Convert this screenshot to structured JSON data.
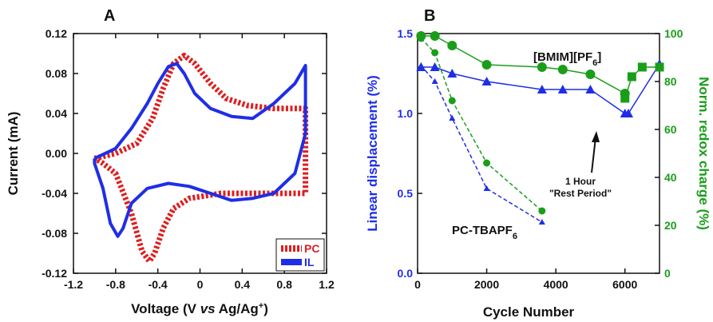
{
  "chart_data": [
    {
      "panel_label": "A",
      "type": "line",
      "xlabel": "Voltage (V vs Ag/Ag+)",
      "xlabel_parts": {
        "a": "Voltage (V ",
        "vs": "vs",
        "b": " Ag/Ag",
        "sup": "+",
        "c": ")"
      },
      "ylabel": "Current (mA)",
      "xlim": [
        -1.2,
        1.2
      ],
      "ylim": [
        -0.12,
        0.12
      ],
      "xticks": [
        "-1.2",
        "-0.8",
        "-0.4",
        "0",
        "0.4",
        "0.8",
        "1.2"
      ],
      "yticks": [
        "0.12",
        "0.08",
        "0.04",
        "0.00",
        "-0.04",
        "-0.08",
        "-0.12"
      ],
      "legend": {
        "placement": "bottom-right",
        "entries": [
          "PC",
          "IL"
        ]
      },
      "series": [
        {
          "name": "PC",
          "color": "#dd1f1f",
          "style": "thick-dashed",
          "points": [
            [
              -1.0,
              -0.005
            ],
            [
              -0.8,
              0.0
            ],
            [
              -0.6,
              0.01
            ],
            [
              -0.45,
              0.035
            ],
            [
              -0.35,
              0.065
            ],
            [
              -0.25,
              0.09
            ],
            [
              -0.15,
              0.098
            ],
            [
              -0.05,
              0.09
            ],
            [
              0.1,
              0.07
            ],
            [
              0.25,
              0.055
            ],
            [
              0.45,
              0.048
            ],
            [
              0.7,
              0.045
            ],
            [
              1.0,
              0.045
            ],
            [
              1.0,
              -0.04
            ],
            [
              0.8,
              -0.04
            ],
            [
              0.5,
              -0.04
            ],
            [
              0.2,
              -0.04
            ],
            [
              -0.1,
              -0.045
            ],
            [
              -0.25,
              -0.055
            ],
            [
              -0.35,
              -0.075
            ],
            [
              -0.43,
              -0.1
            ],
            [
              -0.48,
              -0.108
            ],
            [
              -0.55,
              -0.098
            ],
            [
              -0.65,
              -0.06
            ],
            [
              -0.8,
              -0.02
            ],
            [
              -0.92,
              -0.01
            ],
            [
              -1.0,
              -0.005
            ]
          ]
        },
        {
          "name": "IL",
          "color": "#1f2ee6",
          "style": "thick-solid",
          "points": [
            [
              -1.0,
              -0.005
            ],
            [
              -0.8,
              0.005
            ],
            [
              -0.65,
              0.025
            ],
            [
              -0.5,
              0.05
            ],
            [
              -0.4,
              0.07
            ],
            [
              -0.3,
              0.087
            ],
            [
              -0.22,
              0.09
            ],
            [
              -0.15,
              0.08
            ],
            [
              -0.05,
              0.06
            ],
            [
              0.1,
              0.045
            ],
            [
              0.3,
              0.037
            ],
            [
              0.5,
              0.035
            ],
            [
              0.7,
              0.05
            ],
            [
              0.9,
              0.07
            ],
            [
              1.0,
              0.088
            ],
            [
              1.0,
              0.02
            ],
            [
              0.9,
              -0.02
            ],
            [
              0.7,
              -0.04
            ],
            [
              0.5,
              -0.045
            ],
            [
              0.3,
              -0.047
            ],
            [
              0.1,
              -0.04
            ],
            [
              -0.1,
              -0.033
            ],
            [
              -0.3,
              -0.03
            ],
            [
              -0.5,
              -0.035
            ],
            [
              -0.65,
              -0.05
            ],
            [
              -0.73,
              -0.075
            ],
            [
              -0.78,
              -0.083
            ],
            [
              -0.85,
              -0.07
            ],
            [
              -0.92,
              -0.035
            ],
            [
              -1.0,
              -0.01
            ],
            [
              -1.0,
              -0.005
            ]
          ]
        }
      ]
    },
    {
      "panel_label": "B",
      "type": "line",
      "xlabel": "Cycle Number",
      "ylabel_left": "Linear displacement (%)",
      "ylabel_right": "Norm. redox charge (%)",
      "left_color": "#1f2ee6",
      "right_color": "#1a9e1a",
      "xlim": [
        0,
        7000
      ],
      "ylim_left": [
        0.0,
        1.5
      ],
      "ylim_right": [
        0,
        100
      ],
      "xticks": [
        "0",
        "2000",
        "4000",
        "6000"
      ],
      "yticks_left": [
        "0.0",
        "0.5",
        "1.0",
        "1.5"
      ],
      "yticks_right": [
        "0",
        "20",
        "40",
        "60",
        "80",
        "100"
      ],
      "annotations": {
        "bmim_main": "[BMIM][PF",
        "bmim_sub": "6",
        "bmim_end": "]",
        "pc_main": "PC-TBAPF",
        "pc_sub": "6",
        "rest_line1": "1 Hour",
        "rest_line2": "\"Rest Period\""
      },
      "series": [
        {
          "name": "[BMIM][PF6] displacement",
          "axis": "left",
          "color": "#1f2ee6",
          "style": "solid",
          "marker": "triangle",
          "x": [
            100,
            500,
            1000,
            2000,
            3600,
            4200,
            5000,
            6000,
            6100,
            7000
          ],
          "y": [
            1.29,
            1.29,
            1.25,
            1.2,
            1.15,
            1.15,
            1.15,
            1.0,
            1.0,
            1.31
          ]
        },
        {
          "name": "[BMIM][PF6] redox charge",
          "axis": "right",
          "color": "#1a9e1a",
          "style": "solid",
          "marker": "circle",
          "x": [
            100,
            500,
            1000,
            2000,
            3600,
            4200,
            5000,
            6000
          ],
          "y": [
            99,
            99,
            95,
            87,
            86,
            85,
            83,
            75
          ]
        },
        {
          "name": "[BMIM][PF6] redox charge after rest",
          "axis": "right",
          "color": "#1a9e1a",
          "style": "solid",
          "marker": "square",
          "x": [
            6000,
            6200,
            6500,
            7000
          ],
          "y": [
            73,
            82,
            86,
            86
          ]
        },
        {
          "name": "PC-TBAPF6 displacement",
          "axis": "left",
          "color": "#1f2ee6",
          "style": "dashed",
          "marker": "small-triangle",
          "x": [
            100,
            500,
            1000,
            2000,
            3600
          ],
          "y": [
            1.3,
            1.2,
            0.97,
            0.53,
            0.32
          ]
        },
        {
          "name": "PC-TBAPF6 redox charge",
          "axis": "right",
          "color": "#1a9e1a",
          "style": "dashed",
          "marker": "small-circle",
          "x": [
            100,
            500,
            1000,
            2000,
            3600
          ],
          "y": [
            98,
            92,
            72,
            46,
            26
          ]
        }
      ]
    }
  ]
}
